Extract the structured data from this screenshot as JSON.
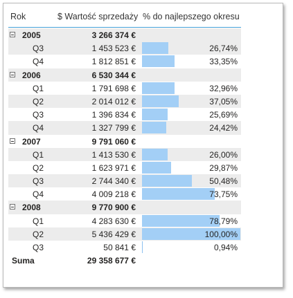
{
  "columns": {
    "year": "Rok",
    "sales": "$ Wartość sprzedaży",
    "pct": "% do najlepszego okresu"
  },
  "bar_color": "#a3cff6",
  "rows": [
    {
      "type": "year",
      "label": "2005",
      "value": "3 266 374 €",
      "shade": true
    },
    {
      "type": "q",
      "label": "Q3",
      "value": "1 453 523 €",
      "pct": "26,74%",
      "ratio": 0.2674,
      "shade": true
    },
    {
      "type": "q",
      "label": "Q4",
      "value": "1 812 851 €",
      "pct": "33,35%",
      "ratio": 0.3335,
      "shade": false
    },
    {
      "type": "year",
      "label": "2006",
      "value": "6 530 344 €",
      "shade": true
    },
    {
      "type": "q",
      "label": "Q1",
      "value": "1 791 698 €",
      "pct": "32,96%",
      "ratio": 0.3296,
      "shade": false
    },
    {
      "type": "q",
      "label": "Q2",
      "value": "2 014 012 €",
      "pct": "37,05%",
      "ratio": 0.3705,
      "shade": true
    },
    {
      "type": "q",
      "label": "Q3",
      "value": "1 396 834 €",
      "pct": "25,69%",
      "ratio": 0.2569,
      "shade": false
    },
    {
      "type": "q",
      "label": "Q4",
      "value": "1 327 799 €",
      "pct": "24,42%",
      "ratio": 0.2442,
      "shade": true
    },
    {
      "type": "year",
      "label": "2007",
      "value": "9 791 060 €",
      "shade": false
    },
    {
      "type": "q",
      "label": "Q1",
      "value": "1 413 530 €",
      "pct": "26,00%",
      "ratio": 0.26,
      "shade": true
    },
    {
      "type": "q",
      "label": "Q2",
      "value": "1 623 971 €",
      "pct": "29,87%",
      "ratio": 0.2987,
      "shade": false
    },
    {
      "type": "q",
      "label": "Q3",
      "value": "2 744 340 €",
      "pct": "50,48%",
      "ratio": 0.5048,
      "shade": true
    },
    {
      "type": "q",
      "label": "Q4",
      "value": "4 009 218 €",
      "pct": "73,75%",
      "ratio": 0.7375,
      "shade": false
    },
    {
      "type": "year",
      "label": "2008",
      "value": "9 770 900 €",
      "shade": true
    },
    {
      "type": "q",
      "label": "Q1",
      "value": "4 283 630 €",
      "pct": "78,79%",
      "ratio": 0.7879,
      "shade": false
    },
    {
      "type": "q",
      "label": "Q2",
      "value": "5 436 429 €",
      "pct": "100,00%",
      "ratio": 1.0,
      "shade": true
    },
    {
      "type": "q",
      "label": "Q3",
      "value": "50 841 €",
      "pct": "0,94%",
      "ratio": 0.0094,
      "shade": false
    },
    {
      "type": "sum",
      "label": "Suma",
      "value": "29 358 677 €",
      "shade": false
    }
  ]
}
